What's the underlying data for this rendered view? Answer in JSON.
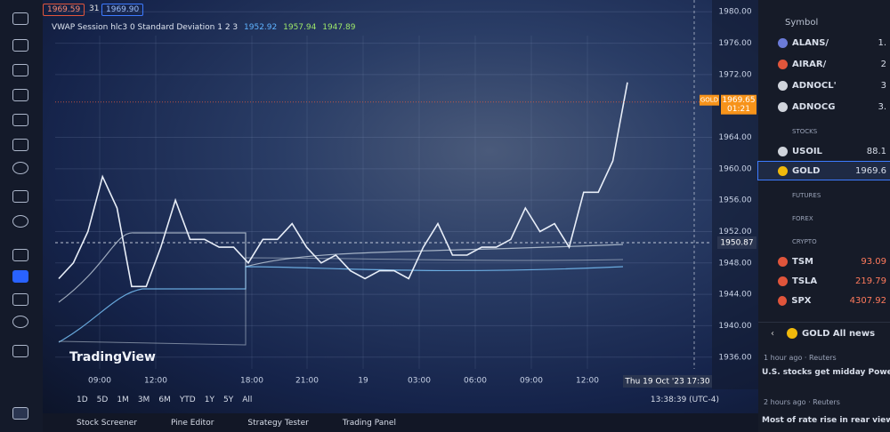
{
  "header": {
    "price_left": "1969.59",
    "qty": "31",
    "price_right": "1969.90"
  },
  "indicator": {
    "name": "VWAP Session hlc3 0 Standard Deviation 1 2 3",
    "values": [
      "1952.92",
      "1957.94",
      "1947.89"
    ]
  },
  "chart_data": {
    "type": "line",
    "series": [
      {
        "name": "GOLD",
        "color": "#e8eef8",
        "values": [
          1946,
          1948,
          1952,
          1959,
          1955,
          1945,
          1945,
          1950,
          1956,
          1951,
          1951,
          1950,
          1950,
          1948,
          1951,
          1951,
          1953,
          1950,
          1948,
          1949,
          1947,
          1946,
          1947,
          1947,
          1946,
          1950,
          1953,
          1949,
          1949,
          1950,
          1950,
          1951,
          1955,
          1952,
          1953,
          1950,
          1957,
          1957,
          1961,
          1971
        ]
      }
    ],
    "ylim": [
      1934.5,
      1981.5
    ],
    "yticks": [
      {
        "value": 1936,
        "label": "1936.00"
      },
      {
        "value": 1940,
        "label": "1940.00"
      },
      {
        "value": 1944,
        "label": "1944.00"
      },
      {
        "value": 1948,
        "label": "1948.00"
      },
      {
        "value": 1952,
        "label": "1952.00"
      },
      {
        "value": 1956,
        "label": "1956.00"
      },
      {
        "value": 1960,
        "label": "1960.00"
      },
      {
        "value": 1964,
        "label": "1964.00"
      },
      {
        "value": 1972,
        "label": "1972.00"
      },
      {
        "value": 1976,
        "label": "1976.00"
      },
      {
        "value": 1980,
        "label": "1980.00"
      }
    ],
    "grid": true,
    "price_tag": {
      "symbol": "GOLD",
      "price": "1969.65",
      "countdown": "01:21"
    },
    "crosshair": {
      "price": "1950.87",
      "time": "Thu 19 Oct '23   17:30"
    }
  },
  "time_axis": [
    "09:00",
    "12:00",
    "18:00",
    "21:00",
    "19",
    "03:00",
    "06:00",
    "09:00",
    "12:00"
  ],
  "logo": "TradingView",
  "ranges": [
    "1D",
    "5D",
    "1M",
    "3M",
    "6M",
    "YTD",
    "1Y",
    "5Y",
    "All"
  ],
  "clock": "13:38:39 (UTC-4)",
  "tabs": [
    "Stock Screener",
    "Pine Editor",
    "Strategy Tester",
    "Trading Panel"
  ],
  "watchlist": {
    "header": "Symbol",
    "rows": [
      {
        "symbol": "ALANS/",
        "price": "1."
      },
      {
        "symbol": "AIRAR/",
        "price": "2"
      },
      {
        "symbol": "ADNOCL'",
        "price": "3"
      },
      {
        "symbol": "ADNOCG",
        "price": "3."
      }
    ],
    "sections": [
      "STOCKS",
      "FUTURES",
      "FOREX",
      "CRYPTO"
    ],
    "stocks": [
      {
        "symbol": "USOIL",
        "price": "88.1"
      },
      {
        "symbol": "GOLD",
        "price": "1969.6"
      }
    ],
    "crypto": [
      {
        "symbol": "TSM",
        "price": "93.09"
      },
      {
        "symbol": "TSLA",
        "price": "219.79"
      },
      {
        "symbol": "SPX",
        "price": "4307.92"
      }
    ]
  },
  "news": {
    "title": "GOLD All news",
    "items": [
      {
        "meta": "1 hour ago · Reuters",
        "headline": "U.S. stocks get midday Powell"
      },
      {
        "meta": "2 hours ago · Reuters",
        "headline": "Most of rate rise in rear view m"
      }
    ]
  }
}
